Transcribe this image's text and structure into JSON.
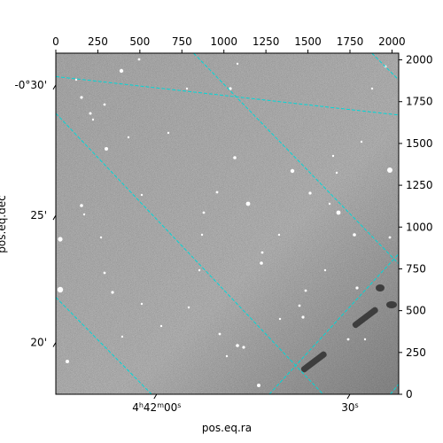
{
  "chart_data": {
    "type": "image",
    "title": "",
    "xlabel": "pos.eq.ra",
    "ylabel": "pos.eq.dec",
    "pixel_axes": {
      "x": {
        "min": 0,
        "max": 2040,
        "ticks": [
          0,
          250,
          500,
          750,
          1000,
          1250,
          1500,
          1750,
          2000
        ]
      },
      "y": {
        "min": 0,
        "max": 2040,
        "ticks": [
          0,
          250,
          500,
          750,
          1000,
          1250,
          1500,
          1750,
          2000
        ]
      }
    },
    "ra_labels": [
      {
        "hms": "4h42m00s",
        "x": 600
      },
      {
        "hms": "30s",
        "x": 1750
      }
    ],
    "dec_labels": [
      {
        "dms": "-0°30'",
        "y": 1850
      },
      {
        "dms": "25'",
        "y": 1070
      },
      {
        "dms": "20'",
        "y": 310
      }
    ],
    "grid": {
      "on": true,
      "color": "#00d7d7",
      "style": "dashed",
      "ra_lines": [
        {
          "x0": 820,
          "y0": 2040,
          "x1": 2040,
          "y1": 780
        },
        {
          "x0": 0,
          "y0": 1680,
          "x1": 1590,
          "y1": 0
        },
        {
          "x0": 0,
          "y0": 580,
          "x1": 570,
          "y1": 0
        },
        {
          "x0": 1880,
          "y0": 2040,
          "x1": 2040,
          "y1": 1880
        },
        {
          "x0": 1990,
          "y0": 0,
          "x1": 2040,
          "y1": 60
        }
      ],
      "dec_lines": [
        {
          "x0": 1270,
          "y0": 0,
          "x1": 2040,
          "y1": 840
        },
        {
          "x0": 0,
          "y0": 1900,
          "x1": 2040,
          "y1": 1670
        }
      ],
      "dec_line_pairs": [
        {
          "x0": 0,
          "y0": 1070,
          "x1": 2040,
          "y1": 1080,
          "note": ""
        }
      ]
    },
    "colormap": "gray",
    "background_level": 0.42
  }
}
